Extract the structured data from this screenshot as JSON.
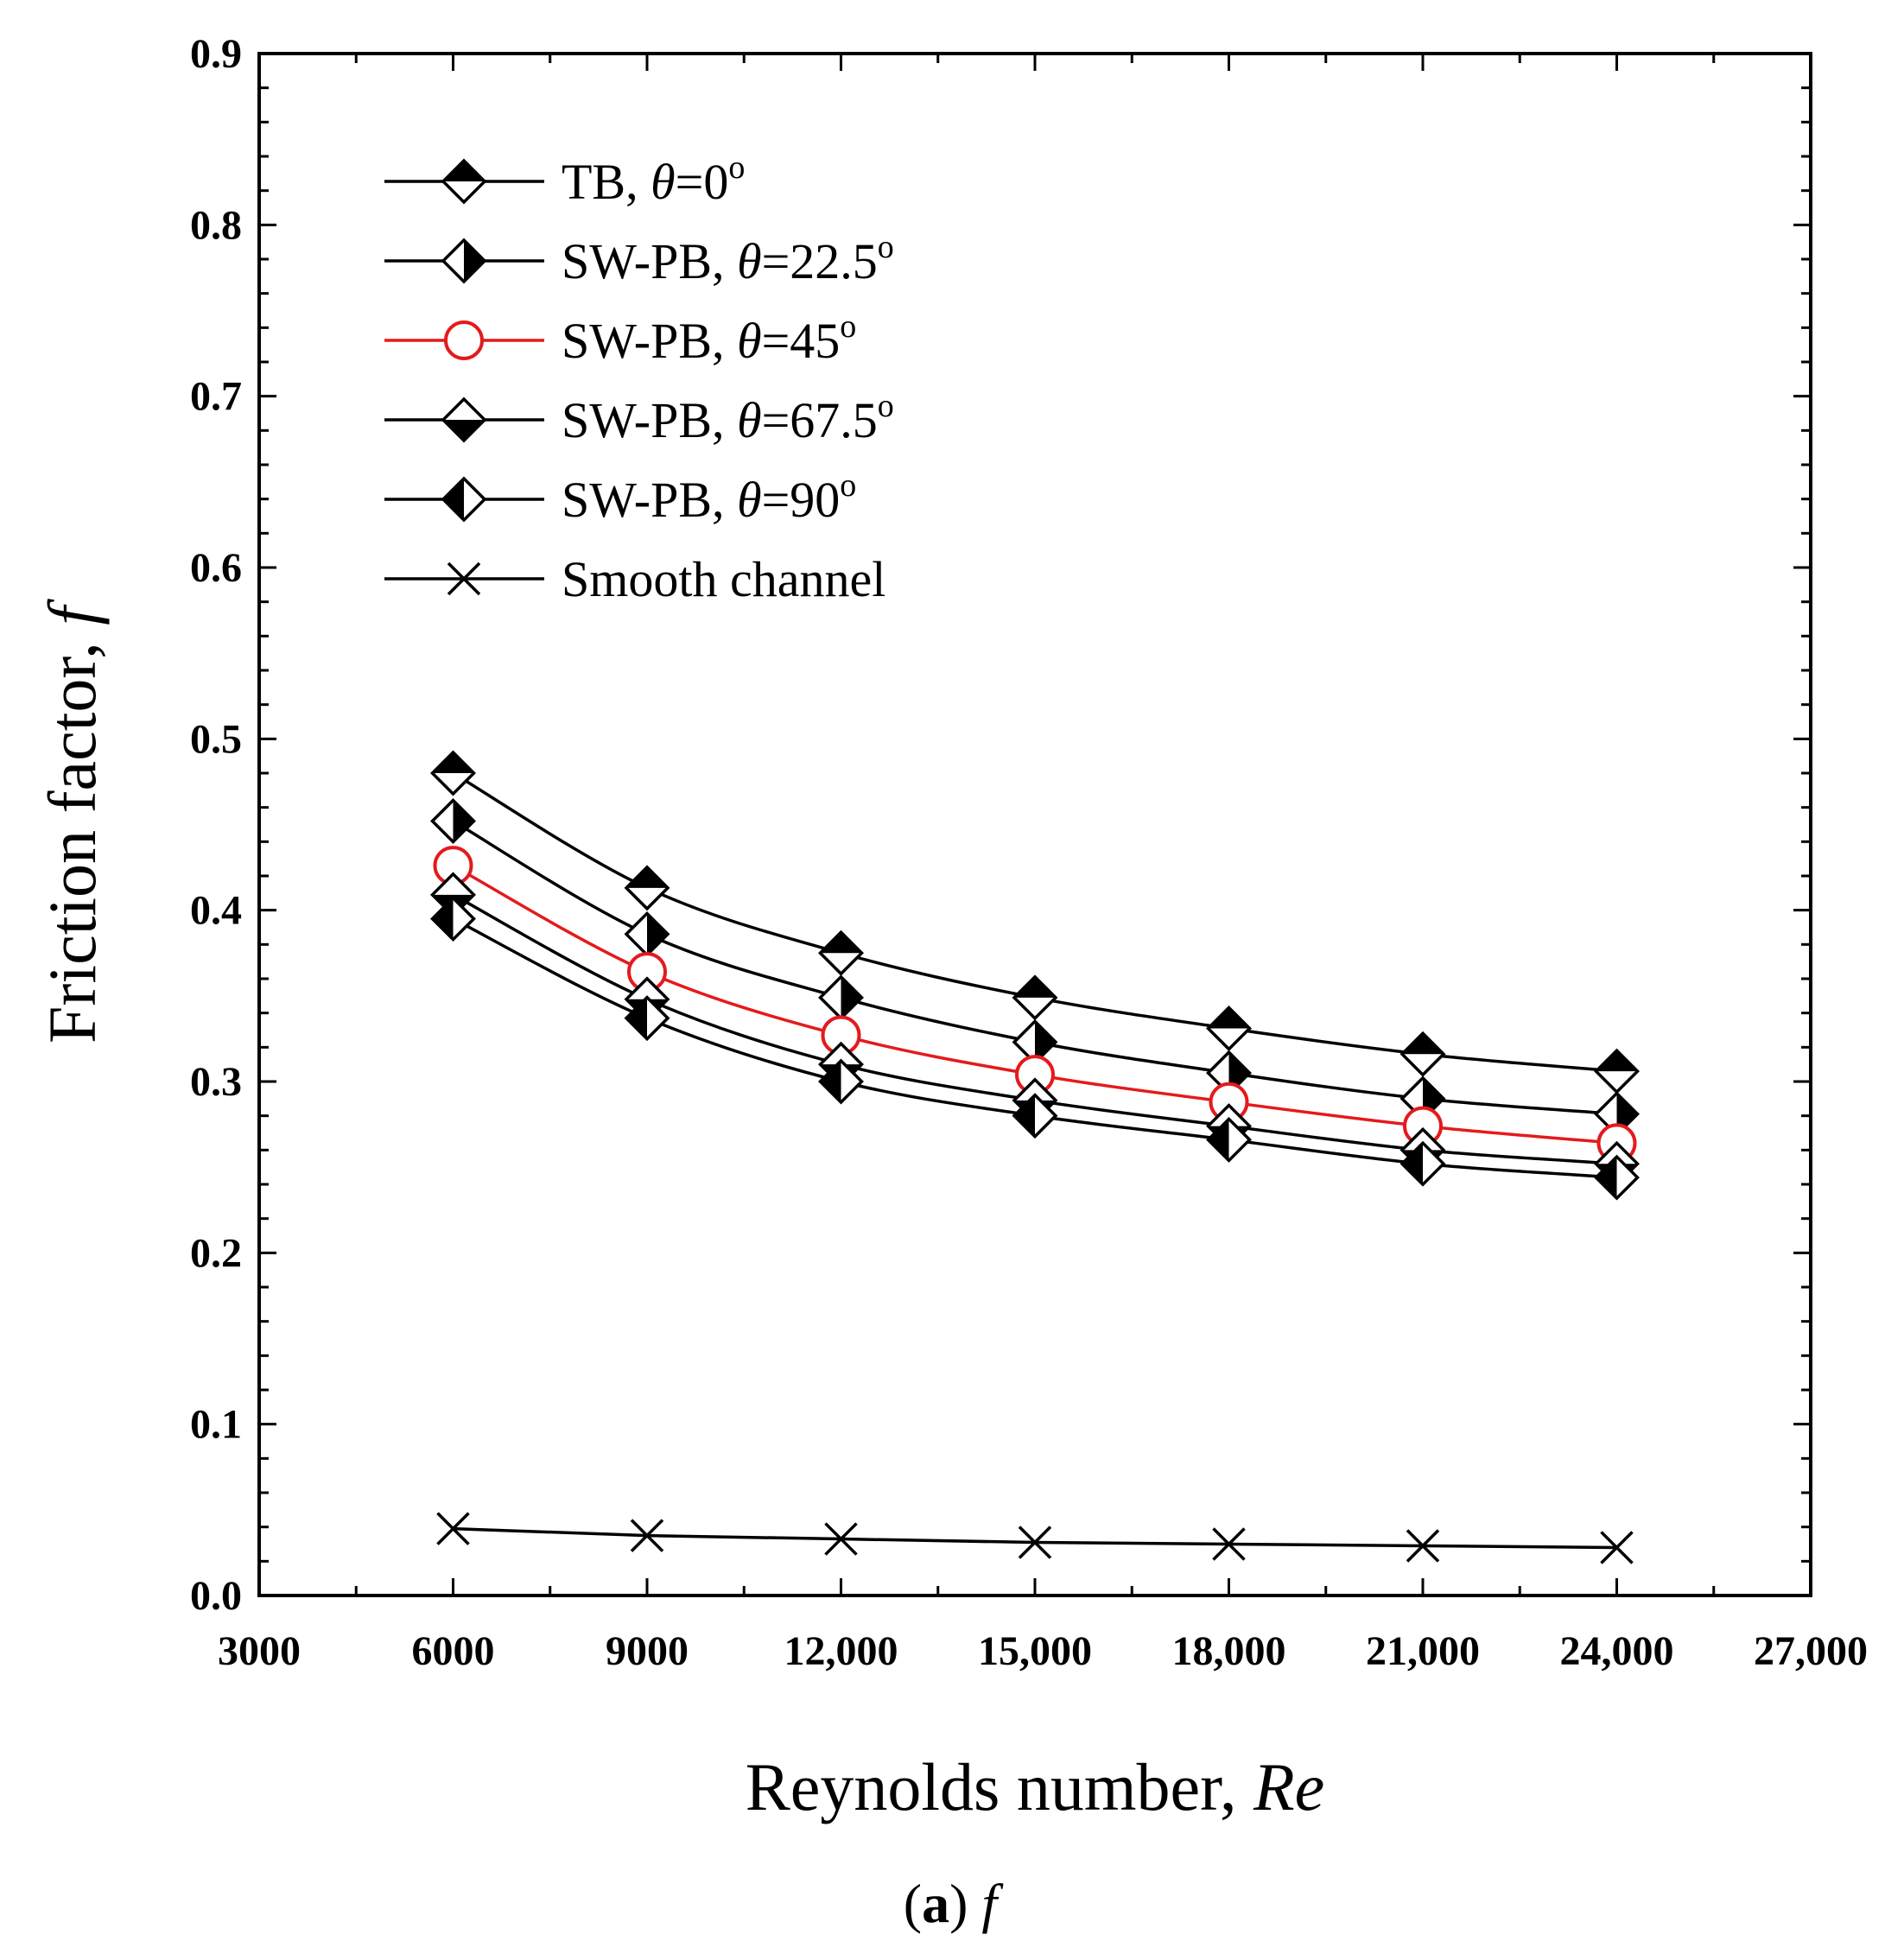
{
  "chart_data": {
    "type": "line",
    "xlabel": "Reynolds number, ",
    "xlabel_italic": "Re",
    "ylabel": "Friction factor, ",
    "ylabel_italic": "f",
    "xlim": [
      3000,
      27000
    ],
    "ylim": [
      0.0,
      0.9
    ],
    "xticks": [
      3000,
      6000,
      9000,
      12000,
      15000,
      18000,
      21000,
      24000,
      27000
    ],
    "xtick_labels": [
      "3000",
      "6000",
      "9000",
      "12,000",
      "15,000",
      "18,000",
      "21,000",
      "24,000",
      "27,000"
    ],
    "yticks": [
      0.0,
      0.1,
      0.2,
      0.3,
      0.4,
      0.5,
      0.6,
      0.7,
      0.8,
      0.9
    ],
    "ytick_labels": [
      "0.0",
      "0.1",
      "0.2",
      "0.3",
      "0.4",
      "0.5",
      "0.6",
      "0.7",
      "0.8",
      "0.9"
    ],
    "grid": false,
    "legend_position": "top-left",
    "x": [
      6000,
      9000,
      12000,
      15000,
      18000,
      21000,
      24000
    ],
    "series": [
      {
        "name": "TB, ",
        "theta": "θ",
        "suffix": "=0",
        "sup": "o",
        "marker": "diamond-top",
        "color": "#000000",
        "values": [
          0.48,
          0.413,
          0.375,
          0.349,
          0.331,
          0.316,
          0.306
        ]
      },
      {
        "name": "SW-PB, ",
        "theta": "θ",
        "suffix": "=22.5",
        "sup": "o",
        "marker": "diamond-right",
        "color": "#000000",
        "values": [
          0.452,
          0.386,
          0.349,
          0.323,
          0.305,
          0.29,
          0.281
        ]
      },
      {
        "name": "SW-PB, ",
        "theta": "θ",
        "suffix": "=45",
        "sup": "o",
        "marker": "circle-open",
        "color": "#e41a1c",
        "values": [
          0.426,
          0.364,
          0.327,
          0.304,
          0.288,
          0.274,
          0.264
        ]
      },
      {
        "name": "SW-PB, ",
        "theta": "θ",
        "suffix": "=67.5",
        "sup": "o",
        "marker": "diamond-bottom",
        "color": "#000000",
        "values": [
          0.409,
          0.348,
          0.31,
          0.289,
          0.274,
          0.26,
          0.252
        ]
      },
      {
        "name": "SW-PB, ",
        "theta": "θ",
        "suffix": "=90",
        "sup": "o",
        "marker": "diamond-left",
        "color": "#000000",
        "values": [
          0.395,
          0.337,
          0.3,
          0.28,
          0.266,
          0.252,
          0.244
        ]
      },
      {
        "name": "Smooth channel",
        "theta": "",
        "suffix": "",
        "sup": "",
        "marker": "x",
        "color": "#000000",
        "values": [
          0.039,
          0.035,
          0.033,
          0.031,
          0.03,
          0.029,
          0.028
        ]
      }
    ]
  },
  "caption": {
    "open": "(",
    "letter": "a",
    "close": ") ",
    "symbol": "f"
  }
}
